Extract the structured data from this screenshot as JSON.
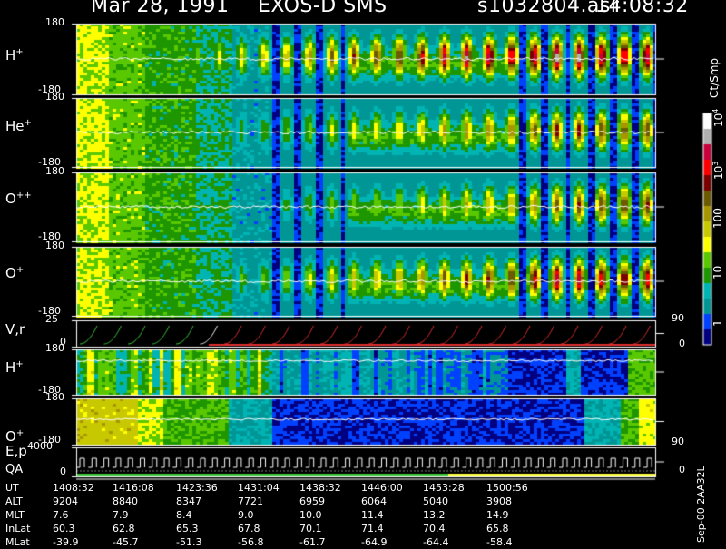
{
  "header": {
    "date": "Mar 28, 1991",
    "instrument": "EXOS-D SMS",
    "file": "s1032804.asr",
    "time": "14:08:32"
  },
  "panels": [
    {
      "id": "h1",
      "label": "H",
      "sup": "+",
      "top_tick": "180",
      "bot_tick": "-180"
    },
    {
      "id": "he",
      "label": "He",
      "sup": "+",
      "top_tick": "180",
      "bot_tick": "-180"
    },
    {
      "id": "opp",
      "label": "O",
      "sup": "++",
      "top_tick": "180",
      "bot_tick": "-180"
    },
    {
      "id": "o1",
      "label": "O",
      "sup": "+",
      "top_tick": "180",
      "bot_tick": "-180"
    },
    {
      "id": "vr",
      "label": "V,r",
      "sup": "",
      "top_tick": "25",
      "bot_tick": "0"
    },
    {
      "id": "h2",
      "label": "H",
      "sup": "+",
      "top_tick": "180",
      "bot_tick": "-180"
    },
    {
      "id": "o2",
      "label": "O",
      "sup": "+",
      "top_tick": "180",
      "bot_tick": "-180"
    },
    {
      "id": "ep",
      "label": "E,p",
      "sup": "",
      "top_tick": "4000",
      "bot_tick": "0"
    }
  ],
  "qa_label": "QA",
  "right_axis": {
    "vr_top": "90",
    "vr_bot": "0",
    "o2_bot": "90",
    "ep_bot": "0"
  },
  "colorbar": {
    "unit": "Ct/Smp",
    "labels": [
      {
        "text": "10",
        "sup": "4"
      },
      {
        "text": "10",
        "sup": "3"
      },
      {
        "text": "100",
        "sup": ""
      },
      {
        "text": "10",
        "sup": ""
      },
      {
        "text": "1",
        "sup": ""
      }
    ],
    "colors": [
      "#ffffff",
      "#b0b0b0",
      "#c8003c",
      "#ff0000",
      "#7a0000",
      "#6b5a00",
      "#a89600",
      "#c8c800",
      "#ffff00",
      "#5ac800",
      "#1e9600",
      "#00b4b4",
      "#009696",
      "#0040ff",
      "#000080"
    ]
  },
  "code": "Sep-00 2AA32L",
  "table": {
    "rows": [
      {
        "label": "UT",
        "values": [
          "1408:32",
          "1416:08",
          "1423:36",
          "1431:04",
          "1438:32",
          "1446:00",
          "1453:28",
          "1500:56"
        ]
      },
      {
        "label": "ALT",
        "values": [
          "9204",
          "8840",
          "8347",
          "7721",
          "6959",
          "6064",
          "5040",
          "3908"
        ]
      },
      {
        "label": "MLT",
        "values": [
          "7.6",
          "7.9",
          "8.4",
          "9.0",
          "10.0",
          "11.4",
          "13.2",
          "14.9"
        ]
      },
      {
        "label": "InLat",
        "values": [
          "60.3",
          "62.8",
          "65.3",
          "67.8",
          "70.1",
          "71.4",
          "70.4",
          "65.8"
        ]
      },
      {
        "label": "MLat",
        "values": [
          "-39.9",
          "-45.7",
          "-51.3",
          "-56.8",
          "-61.7",
          "-64.9",
          "-64.4",
          "-58.4"
        ]
      }
    ]
  },
  "chart_data": {
    "type": "heatmap",
    "title": "Mar 28, 1991   EXOS-D SMS",
    "x_ut": [
      "1408:32",
      "1416:08",
      "1423:36",
      "1431:04",
      "1438:32",
      "1446:00",
      "1453:28",
      "1500:56"
    ],
    "y_range_pitch": [
      -180,
      180
    ],
    "color_scale": "log",
    "color_range": [
      1,
      10000
    ],
    "color_unit": "Ct/Smp",
    "species": [
      "H+",
      "He+",
      "O++",
      "O+",
      "V,r",
      "H+",
      "O+",
      "E,p"
    ]
  }
}
